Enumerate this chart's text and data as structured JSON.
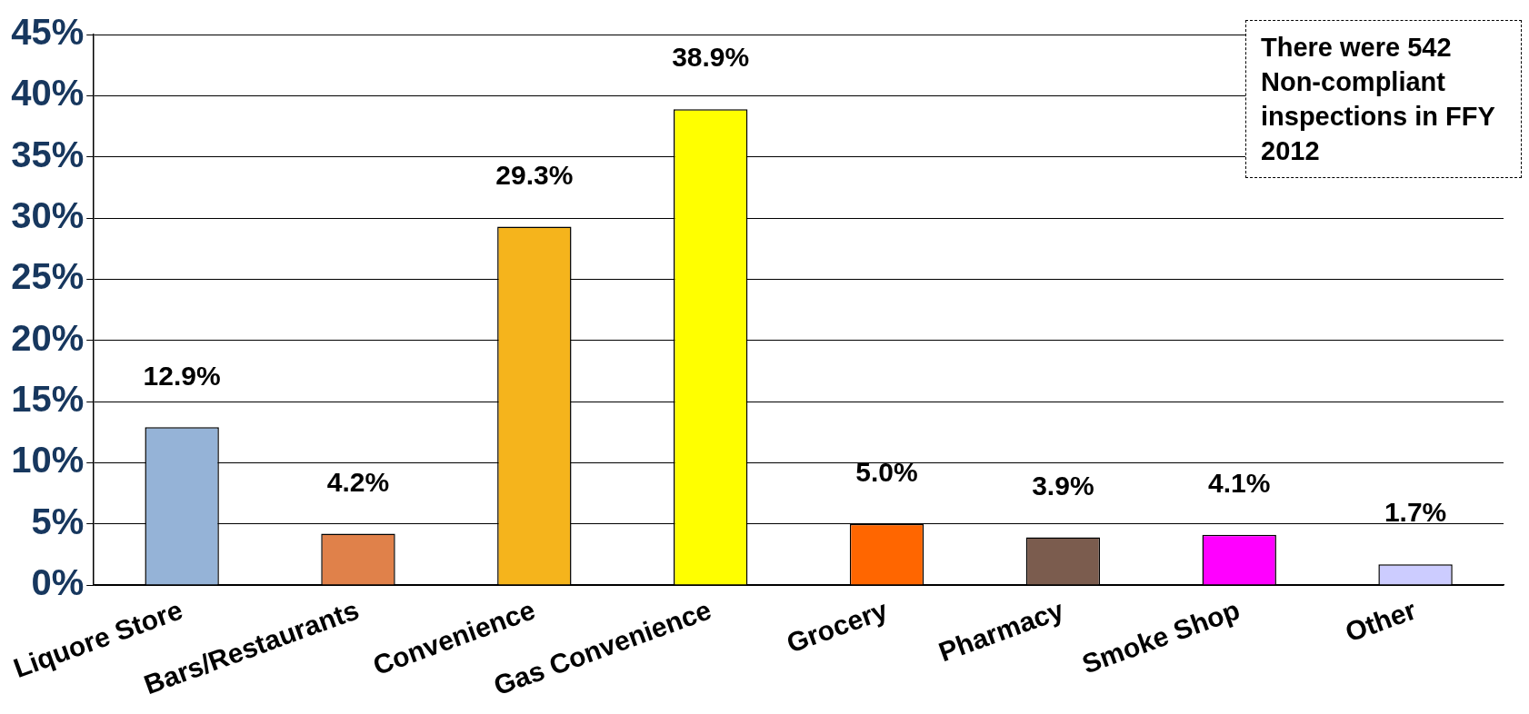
{
  "chart_data": {
    "type": "bar",
    "categories": [
      "Liquore Store",
      "Bars/Restaurants",
      "Convenience",
      "Gas Convenience",
      "Grocery",
      "Pharmacy",
      "Smoke Shop",
      "Other"
    ],
    "values": [
      12.9,
      4.2,
      29.3,
      38.9,
      5.0,
      3.9,
      4.1,
      1.7
    ],
    "colors": [
      "#95b3d7",
      "#e0814a",
      "#f5b41c",
      "#ffff00",
      "#ff6600",
      "#7b5c4e",
      "#ff00ff",
      "#ccccff"
    ],
    "value_labels": [
      "12.9%",
      "4.2%",
      "29.3%",
      "38.9%",
      "5.0%",
      "3.9%",
      "4.1%",
      "1.7%"
    ],
    "ylim": [
      0,
      45
    ],
    "yticks": [
      {
        "value": 0,
        "label": "0%"
      },
      {
        "value": 5,
        "label": "5%"
      },
      {
        "value": 10,
        "label": "10%"
      },
      {
        "value": 15,
        "label": "15%"
      },
      {
        "value": 20,
        "label": "20%"
      },
      {
        "value": 25,
        "label": "25%"
      },
      {
        "value": 30,
        "label": "30%"
      },
      {
        "value": 35,
        "label": "35%"
      },
      {
        "value": 40,
        "label": "40%"
      },
      {
        "value": 45,
        "label": "45%"
      }
    ],
    "grid": "y",
    "legend": false,
    "annotations": [
      "There were 542 Non-compliant inspections in FFY 2012"
    ]
  }
}
